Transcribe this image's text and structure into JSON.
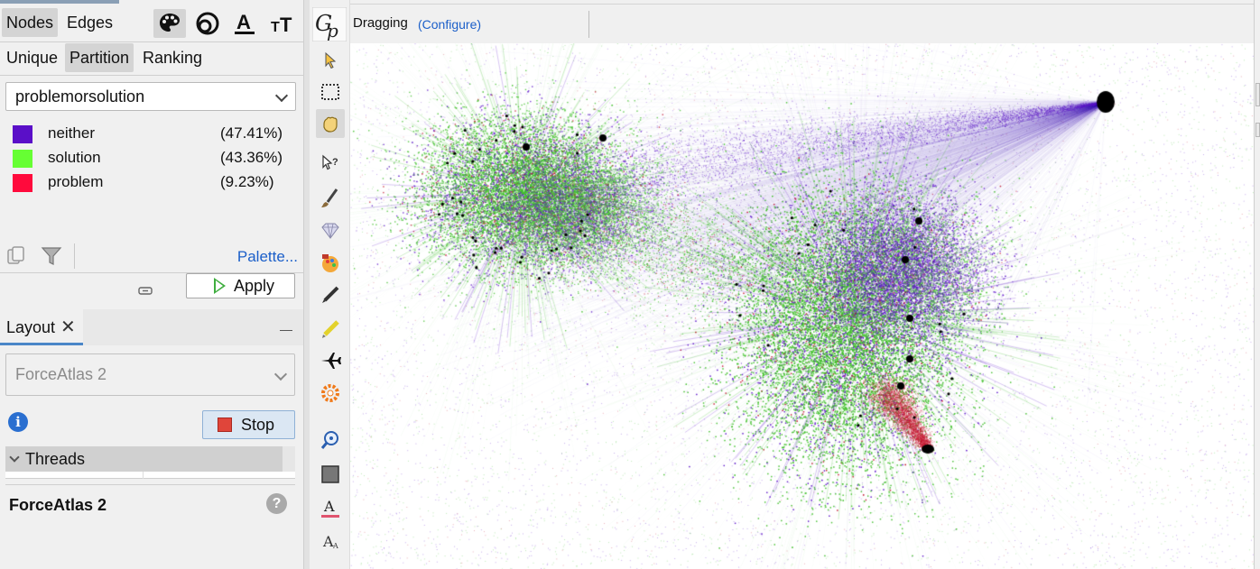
{
  "left_panel": {
    "top_tabs": [
      {
        "label": "Nodes",
        "selected": true
      },
      {
        "label": "Edges",
        "selected": false
      }
    ],
    "top_icons": [
      "palette-icon",
      "size-icon",
      "label-color-icon",
      "label-size-icon"
    ],
    "sub_tabs": [
      {
        "label": "Unique",
        "selected": false
      },
      {
        "label": "Partition",
        "selected": true
      },
      {
        "label": "Ranking",
        "selected": false
      }
    ],
    "attribute": "problemorsolution",
    "partitions": [
      {
        "label": "neither",
        "percent": "(47.41%)",
        "color": "#5a0fc8"
      },
      {
        "label": "solution",
        "percent": "(43.36%)",
        "color": "#66ff33"
      },
      {
        "label": "problem",
        "percent": "(9.23%)",
        "color": "#ff0a3c"
      }
    ],
    "palette_link": "Palette...",
    "apply_label": "Apply"
  },
  "layout_panel": {
    "tab_label": "Layout",
    "close": "✕",
    "algorithm": "ForceAtlas 2",
    "stop_label": "Stop",
    "threads_label": "Threads",
    "title": "ForceAtlas 2",
    "help": "?",
    "info": "i"
  },
  "graph_window": {
    "mode_label": "Dragging",
    "configure_link": "(Configure)",
    "tools": [
      "select-icon",
      "rectangle-select-icon",
      "drag-hand-icon",
      "edit-node-icon",
      "brush-icon",
      "diamond-icon",
      "painter-icon",
      "pencil-icon",
      "highlighter-icon",
      "airplane-icon",
      "shortest-path-icon",
      "zoom-icon",
      "background-color-icon",
      "label-color-icon",
      "label-size-icon"
    ],
    "colors": {
      "neither": "#5a0fc8",
      "solution": "#3fbf2a",
      "problem": "#c41630",
      "hub": "#000000"
    }
  }
}
